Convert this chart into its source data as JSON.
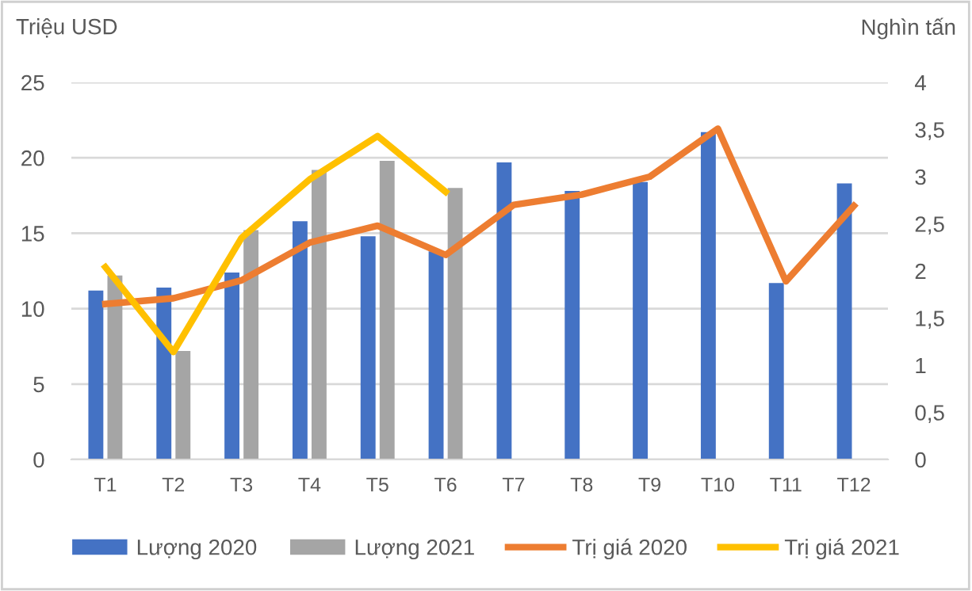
{
  "chart_data": {
    "type": "bar",
    "ylabel": "Triệu USD",
    "y2label": "Nghìn tấn",
    "categories": [
      "T1",
      "T2",
      "T3",
      "T4",
      "T5",
      "T6",
      "T7",
      "T8",
      "T9",
      "T10",
      "T11",
      "T12"
    ],
    "series": [
      {
        "name": "Lượng 2020",
        "color": "#4472c4",
        "values": [
          11.2,
          11.4,
          12.4,
          15.8,
          14.8,
          13.8,
          19.7,
          17.8,
          18.4,
          21.7,
          11.7,
          18.3
        ]
      },
      {
        "name": "Lượng 2021",
        "color": "#a5a5a5",
        "values": [
          12.2,
          7.2,
          15.2,
          19.2,
          19.8,
          18.0,
          null,
          null,
          null,
          null,
          null,
          null
        ]
      },
      {
        "name": "Trị giá 2020",
        "type": "line",
        "axis": "y2",
        "color": "#ed7d31",
        "values": [
          1.65,
          1.71,
          1.9,
          2.3,
          2.48,
          2.17,
          2.7,
          2.81,
          3.0,
          3.51,
          1.89,
          2.69
        ]
      },
      {
        "name": "Trị giá 2021",
        "type": "line",
        "axis": "y2",
        "color": "#ffc000",
        "values": [
          2.04,
          1.14,
          2.35,
          2.97,
          3.43,
          2.84,
          null,
          null,
          null,
          null,
          null,
          null
        ]
      }
    ],
    "ylim": [
      0,
      25
    ],
    "yticks": [
      0,
      5,
      10,
      15,
      20,
      25
    ],
    "y2lim": [
      0,
      4
    ],
    "y2ticks": [
      0,
      {
        "value": 0.5,
        "label": "0,5"
      },
      1,
      {
        "value": 1.5,
        "label": "1,5"
      },
      2,
      {
        "value": 2.5,
        "label": "2,5"
      },
      3,
      {
        "value": 3.5,
        "label": "3,5"
      },
      4
    ],
    "grid": "y",
    "legend": "bottom"
  }
}
